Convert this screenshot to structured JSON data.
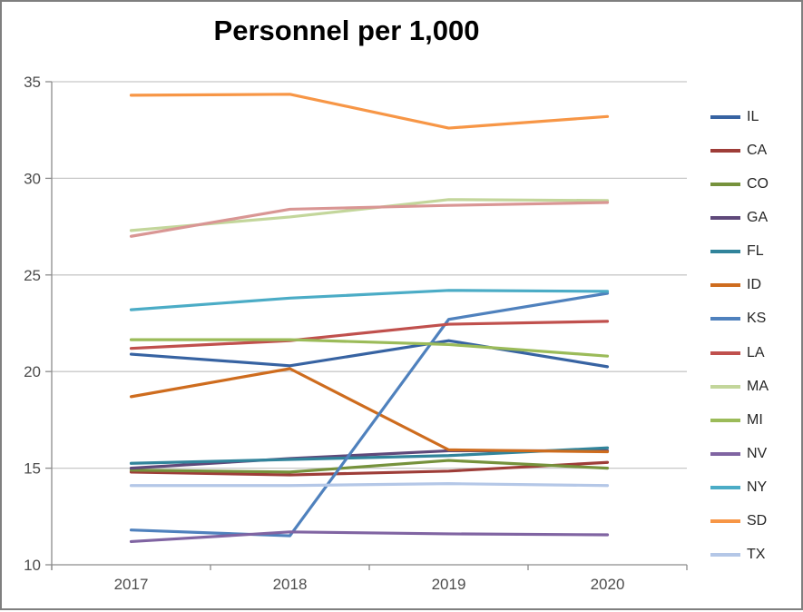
{
  "window": {
    "background": "#ffffff",
    "border_color": "#7f7f7f"
  },
  "title": "Personnel per 1,000",
  "style": {
    "axis_color": "#8c8c8c",
    "gridline_color": "#c8c8c8",
    "tick_label_color": "#4d4d4d",
    "title_color": "#000000",
    "legend_text_color": "#262626"
  },
  "chart_data": {
    "type": "line",
    "title": "Personnel per 1,000",
    "x": [
      "2017",
      "2018",
      "2019",
      "2020"
    ],
    "xlabel": "",
    "ylabel": "",
    "ylim": [
      10,
      35
    ],
    "ytick_labels": [
      "10",
      "15",
      "20",
      "25",
      "30",
      "35"
    ],
    "grid": true,
    "legend_position": "right",
    "series": [
      {
        "name": "IL",
        "color": "#3763A2",
        "in_legend": true,
        "values": [
          20.9,
          20.3,
          21.6,
          20.25
        ]
      },
      {
        "name": "CA",
        "color": "#9E3D38",
        "in_legend": true,
        "values": [
          14.8,
          14.65,
          14.85,
          15.3
        ]
      },
      {
        "name": "CO",
        "color": "#76923C",
        "in_legend": true,
        "values": [
          14.9,
          14.8,
          15.4,
          15.0
        ]
      },
      {
        "name": "GA",
        "color": "#5F497A",
        "in_legend": true,
        "values": [
          15.0,
          15.5,
          15.9,
          15.9
        ]
      },
      {
        "name": "FL",
        "color": "#31849B",
        "in_legend": true,
        "values": [
          15.25,
          15.45,
          15.65,
          16.05
        ]
      },
      {
        "name": "ID",
        "color": "#CE6C1E",
        "in_legend": true,
        "values": [
          18.7,
          20.15,
          15.95,
          15.85
        ]
      },
      {
        "name": "KS",
        "color": "#4F81BD",
        "in_legend": true,
        "values": [
          11.8,
          11.5,
          22.7,
          24.05
        ]
      },
      {
        "name": "LA",
        "color": "#C0504D",
        "in_legend": true,
        "values": [
          21.2,
          21.6,
          22.45,
          22.6
        ]
      },
      {
        "name": "MA",
        "color": "#C3D69B",
        "in_legend": true,
        "values": [
          27.3,
          28.0,
          28.9,
          28.85
        ]
      },
      {
        "name": "",
        "color": "#D99694",
        "in_legend": false,
        "values": [
          27.0,
          28.4,
          28.6,
          28.75
        ]
      },
      {
        "name": "MI",
        "color": "#9BBB59",
        "in_legend": true,
        "values": [
          21.65,
          21.65,
          21.4,
          20.8
        ]
      },
      {
        "name": "NV",
        "color": "#8064A2",
        "in_legend": true,
        "values": [
          11.2,
          11.7,
          11.6,
          11.55
        ]
      },
      {
        "name": "NY",
        "color": "#4BACC6",
        "in_legend": true,
        "values": [
          23.2,
          23.8,
          24.2,
          24.15
        ]
      },
      {
        "name": "SD",
        "color": "#F79646",
        "in_legend": true,
        "values": [
          34.3,
          34.35,
          32.6,
          33.2
        ]
      },
      {
        "name": "TX",
        "color": "#B4C7E7",
        "in_legend": true,
        "values": [
          14.1,
          14.1,
          14.2,
          14.1
        ]
      }
    ]
  }
}
